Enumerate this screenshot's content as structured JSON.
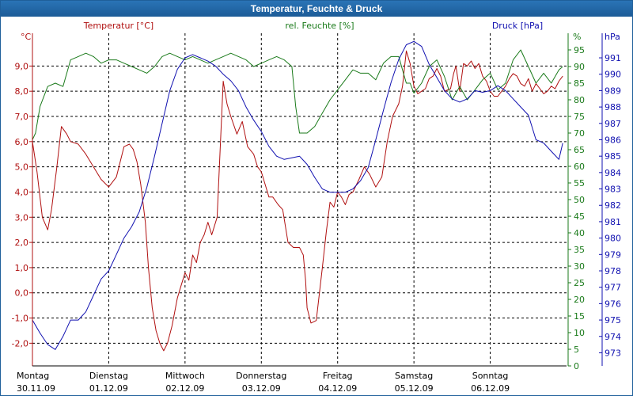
{
  "title": "Temperatur, Feuchte & Druck",
  "colors": {
    "temperature": "#b01010",
    "humidity": "#1a7a1a",
    "pressure": "#1010b0",
    "grid": "#000000",
    "title_bar": "#1c5b97"
  },
  "chart_data": {
    "type": "line",
    "title": "Temperatur, Feuchte & Druck",
    "x_range": [
      0,
      7
    ],
    "x_ticks": [
      {
        "day": "Montag",
        "date": "30.11.09",
        "x": 0
      },
      {
        "day": "Dienstag",
        "date": "01.12.09",
        "x": 1
      },
      {
        "day": "Mittwoch",
        "date": "02.12.09",
        "x": 2
      },
      {
        "day": "Donnerstag",
        "date": "03.12.09",
        "x": 3
      },
      {
        "day": "Freitag",
        "date": "04.12.09",
        "x": 4
      },
      {
        "day": "Samstag",
        "date": "05.12.09",
        "x": 5
      },
      {
        "day": "Sonntag",
        "date": "06.12.09",
        "x": 6
      }
    ],
    "axes": {
      "temperature": {
        "label": "Temperatur [°C]",
        "unit": "°C",
        "range": [
          -2.9,
          10.3
        ],
        "ticks": [
          "9,0",
          "8,0",
          "7,0",
          "6,0",
          "5,0",
          "4,0",
          "3,0",
          "2,0",
          "1,0",
          "0,0",
          "-1,0",
          "-2,0"
        ]
      },
      "humidity": {
        "label": "rel. Feuchte [%]",
        "unit": "%",
        "range": [
          0,
          100
        ],
        "ticks": [
          "95",
          "90",
          "85",
          "80",
          "75",
          "70",
          "65",
          "60",
          "55",
          "50",
          "45",
          "40",
          "35",
          "30",
          "25",
          "20",
          "15",
          "10",
          "5",
          "0"
        ]
      },
      "pressure": {
        "label": "Druck [hPa]",
        "unit": "hPa",
        "range": [
          972.2,
          992.5
        ],
        "ticks": [
          "991",
          "990",
          "989",
          "988",
          "987",
          "986",
          "985",
          "984",
          "983",
          "982",
          "981",
          "980",
          "979",
          "978",
          "977",
          "976",
          "975",
          "974",
          "973"
        ]
      }
    },
    "series": [
      {
        "name": "Temperatur",
        "axis": "temperature",
        "x": [
          0,
          0.06,
          0.13,
          0.2,
          0.25,
          0.32,
          0.38,
          0.45,
          0.5,
          0.6,
          0.7,
          0.8,
          0.9,
          1.0,
          1.1,
          1.2,
          1.27,
          1.32,
          1.37,
          1.42,
          1.48,
          1.52,
          1.57,
          1.62,
          1.67,
          1.72,
          1.77,
          1.83,
          1.9,
          1.95,
          2.0,
          2.05,
          2.1,
          2.15,
          2.2,
          2.25,
          2.3,
          2.35,
          2.42,
          2.5,
          2.55,
          2.6,
          2.68,
          2.75,
          2.82,
          2.9,
          2.95,
          3.0,
          3.05,
          3.1,
          3.15,
          3.22,
          3.28,
          3.35,
          3.42,
          3.5,
          3.55,
          3.58,
          3.6,
          3.65,
          3.72,
          3.8,
          3.85,
          3.9,
          3.95,
          4.0,
          4.05,
          4.1,
          4.15,
          4.2,
          4.28,
          4.35,
          4.42,
          4.5,
          4.58,
          4.65,
          4.72,
          4.8,
          4.85,
          4.9,
          4.95,
          5.0,
          5.05,
          5.1,
          5.15,
          5.2,
          5.25,
          5.3,
          5.35,
          5.4,
          5.48,
          5.52,
          5.55,
          5.6,
          5.65,
          5.7,
          5.75,
          5.8,
          5.85,
          5.9,
          5.95,
          6.0,
          6.05,
          6.1,
          6.15,
          6.2,
          6.25,
          6.3,
          6.35,
          6.4,
          6.45,
          6.5,
          6.55,
          6.6,
          6.65,
          6.7,
          6.75,
          6.8,
          6.85,
          6.9,
          6.95
        ],
        "values": [
          6.0,
          4.8,
          3.0,
          2.5,
          3.3,
          5.0,
          6.6,
          6.3,
          6.0,
          5.9,
          5.5,
          5.0,
          4.5,
          4.2,
          4.6,
          5.8,
          5.9,
          5.7,
          5.2,
          4.3,
          2.8,
          1.0,
          -0.6,
          -1.5,
          -2.0,
          -2.3,
          -2.0,
          -1.3,
          -0.2,
          0.3,
          0.8,
          0.5,
          1.5,
          1.2,
          2.0,
          2.3,
          2.8,
          2.3,
          3.0,
          8.4,
          7.5,
          7.0,
          6.3,
          6.8,
          5.8,
          5.5,
          5.0,
          4.8,
          4.3,
          3.8,
          3.8,
          3.5,
          3.3,
          2.0,
          1.8,
          1.8,
          1.5,
          0.5,
          -0.6,
          -1.2,
          -1.1,
          1.0,
          2.4,
          3.6,
          3.4,
          4.0,
          3.8,
          3.5,
          3.9,
          4.0,
          4.5,
          5.0,
          4.7,
          4.2,
          4.6,
          6.0,
          7.0,
          7.5,
          8.2,
          9.6,
          9.1,
          8.2,
          7.9,
          8.0,
          8.1,
          8.5,
          8.6,
          8.9,
          8.6,
          8.0,
          8.1,
          8.7,
          9.0,
          8.0,
          9.1,
          9.0,
          9.2,
          8.9,
          9.1,
          8.6,
          8.4,
          8.0,
          7.8,
          7.8,
          8.0,
          8.2,
          8.5,
          8.7,
          8.6,
          8.3,
          8.2,
          8.5,
          8.0,
          8.3,
          8.1,
          7.9,
          8.0,
          8.2,
          8.1,
          8.4,
          8.6
        ]
      },
      {
        "name": "rel. Feuchte",
        "axis": "humidity",
        "x": [
          0,
          0.04,
          0.1,
          0.2,
          0.3,
          0.4,
          0.5,
          0.6,
          0.7,
          0.8,
          0.9,
          1.0,
          1.1,
          1.2,
          1.3,
          1.4,
          1.5,
          1.6,
          1.7,
          1.8,
          1.9,
          2.0,
          2.1,
          2.2,
          2.3,
          2.4,
          2.5,
          2.6,
          2.7,
          2.8,
          2.9,
          3.0,
          3.1,
          3.2,
          3.3,
          3.4,
          3.45,
          3.5,
          3.6,
          3.7,
          3.8,
          3.9,
          4.0,
          4.1,
          4.2,
          4.3,
          4.4,
          4.5,
          4.6,
          4.7,
          4.8,
          4.85,
          4.9,
          4.95,
          5.0,
          5.1,
          5.2,
          5.3,
          5.4,
          5.5,
          5.6,
          5.7,
          5.8,
          5.9,
          6.0,
          6.1,
          6.2,
          6.3,
          6.4,
          6.5,
          6.6,
          6.7,
          6.8,
          6.9,
          6.95
        ],
        "values": [
          68,
          70,
          78,
          84,
          85,
          84,
          92,
          93,
          94,
          93,
          91,
          92,
          92,
          91,
          90,
          89,
          88,
          90,
          93,
          94,
          93,
          92,
          93,
          92,
          91,
          92,
          93,
          94,
          93,
          92,
          90,
          91,
          92,
          93,
          92,
          90,
          78,
          70,
          70,
          72,
          76,
          80,
          83,
          86,
          89,
          88,
          88,
          86,
          91,
          93,
          93,
          89,
          85,
          85,
          82,
          85,
          90,
          92,
          87,
          80,
          84,
          80,
          83,
          86,
          88,
          83,
          85,
          92,
          95,
          90,
          85,
          88,
          85,
          89,
          90
        ]
      },
      {
        "name": "Druck",
        "axis": "pressure",
        "x": [
          0,
          0.1,
          0.2,
          0.3,
          0.4,
          0.5,
          0.6,
          0.7,
          0.8,
          0.9,
          1.0,
          1.1,
          1.2,
          1.3,
          1.4,
          1.5,
          1.6,
          1.7,
          1.8,
          1.9,
          2.0,
          2.1,
          2.2,
          2.3,
          2.4,
          2.5,
          2.6,
          2.7,
          2.8,
          2.9,
          3.0,
          3.1,
          3.2,
          3.3,
          3.4,
          3.5,
          3.6,
          3.7,
          3.8,
          3.9,
          4.0,
          4.1,
          4.2,
          4.3,
          4.4,
          4.5,
          4.6,
          4.7,
          4.8,
          4.9,
          5.0,
          5.1,
          5.2,
          5.3,
          5.4,
          5.5,
          5.6,
          5.7,
          5.8,
          5.9,
          6.0,
          6.1,
          6.2,
          6.3,
          6.4,
          6.5,
          6.6,
          6.7,
          6.8,
          6.9,
          6.95
        ],
        "values": [
          975.0,
          974.2,
          973.5,
          973.2,
          974.0,
          975.0,
          975.0,
          975.5,
          976.5,
          977.5,
          978.0,
          979.0,
          980.0,
          980.7,
          981.6,
          983.1,
          985.0,
          987.0,
          989.0,
          990.3,
          991.0,
          991.2,
          991.0,
          990.8,
          990.5,
          990.0,
          989.6,
          989.0,
          988.0,
          987.2,
          986.5,
          985.6,
          985.0,
          984.8,
          984.9,
          985.0,
          984.5,
          983.7,
          983.0,
          982.8,
          982.8,
          982.8,
          983.0,
          983.5,
          984.3,
          986.0,
          987.8,
          989.5,
          990.9,
          991.8,
          992.0,
          991.7,
          990.6,
          989.8,
          989.0,
          988.5,
          988.3,
          988.5,
          989.0,
          988.9,
          989.0,
          989.3,
          989.0,
          988.5,
          988.0,
          987.5,
          986.0,
          985.8,
          985.3,
          984.8,
          985.8
        ]
      }
    ]
  }
}
